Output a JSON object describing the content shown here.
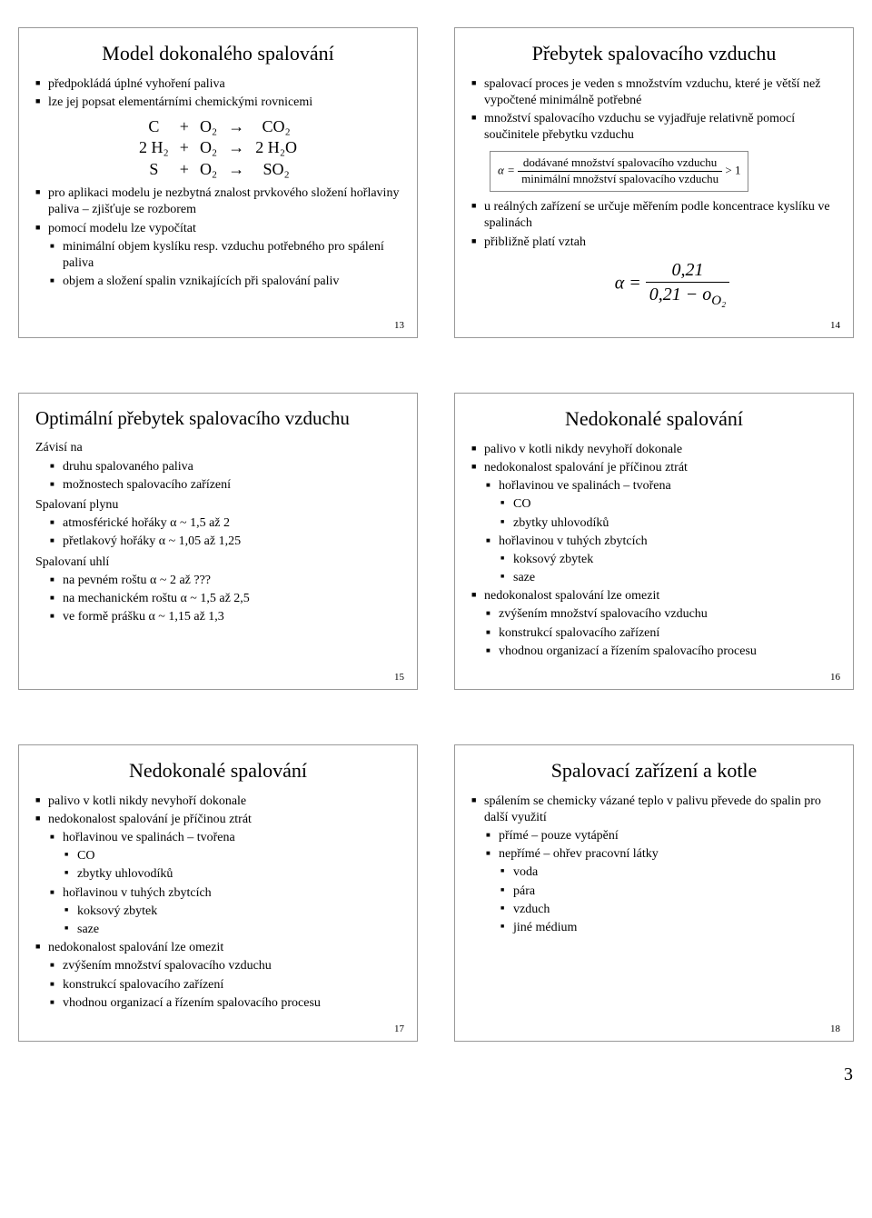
{
  "page_number": "3",
  "styling": {
    "background_color": "#ffffff",
    "text_color": "#000000",
    "border_color": "#999999",
    "font_family": "Times New Roman",
    "title_fontsize_pt": 22,
    "body_fontsize_pt": 14,
    "bullet_glyph": "■"
  },
  "slides": [
    {
      "num": "13",
      "title": "Model dokonalého spalování",
      "bullets": [
        {
          "lvl": 1,
          "t": "předpokládá úplné vyhoření paliva"
        },
        {
          "lvl": 1,
          "t": "lze jej popsat elementárními chemickými rovnicemi"
        }
      ],
      "equations": [
        [
          "C",
          "+",
          "O₂",
          "→",
          "CO₂"
        ],
        [
          "2 H₂",
          "+",
          "O₂",
          "→",
          "2 H₂O"
        ],
        [
          "S",
          "+",
          "O₂",
          "→",
          "SO₂"
        ]
      ],
      "bullets2": [
        {
          "lvl": 1,
          "t": "pro aplikaci modelu je nezbytná znalost prvkového složení hořlaviny paliva – zjišťuje se rozborem"
        },
        {
          "lvl": 1,
          "t": "pomocí modelu lze vypočítat"
        },
        {
          "lvl": 2,
          "t": "minimální objem kyslíku resp. vzduchu potřebného pro spálení paliva"
        },
        {
          "lvl": 2,
          "t": "objem a složení spalin vznikajících při spalování paliv"
        }
      ]
    },
    {
      "num": "14",
      "title": "Přebytek spalovacího vzduchu",
      "bullets": [
        {
          "lvl": 1,
          "t": "spalovací proces je veden s množstvím vzduchu, které je větší než vypočtené minimálně potřebné"
        },
        {
          "lvl": 1,
          "t": "množství spalovacího vzduchu se vyjadřuje relativně pomocí součinitele přebytku vzduchu"
        }
      ],
      "formula_box": {
        "lhs": "α =",
        "num": "dodávané množství spalovacího vzduchu",
        "den": "minimální množství spalovacího vzduchu",
        "cmp": "> 1"
      },
      "bullets2": [
        {
          "lvl": 1,
          "t": "u reálných zařízení se určuje měřením podle koncentrace kyslíku ve spalinách"
        },
        {
          "lvl": 1,
          "t": "přibližně platí vztah"
        }
      ],
      "alpha_formula": {
        "lhs": "α =",
        "num": "0,21",
        "den": "0,21 − o",
        "den_sub": "O₂"
      }
    },
    {
      "num": "15",
      "title": "Optimální přebytek spalovacího vzduchu",
      "groups": [
        {
          "label": "Závisí na",
          "items": [
            {
              "lvl": 2,
              "t": "druhu spalovaného paliva"
            },
            {
              "lvl": 2,
              "t": "možnostech spalovacího zařízení"
            }
          ]
        },
        {
          "label": "Spalovaní plynu",
          "items": [
            {
              "lvl": 2,
              "t": "atmosférické hořáky   α ~ 1,5 až 2"
            },
            {
              "lvl": 2,
              "t": "přetlakový hořáky   α ~ 1,05 až 1,25"
            }
          ]
        },
        {
          "label": "Spalovaní uhlí",
          "items": [
            {
              "lvl": 2,
              "t": "na pevném roštu   α ~ 2 až ???"
            },
            {
              "lvl": 2,
              "t": "na mechanickém roštu   α ~ 1,5 až 2,5"
            },
            {
              "lvl": 2,
              "t": "ve formě prášku   α ~ 1,15 až 1,3"
            }
          ]
        }
      ]
    },
    {
      "num": "16",
      "title": "Nedokonalé spalování",
      "bullets": [
        {
          "lvl": 1,
          "t": "palivo v kotli nikdy nevyhoří dokonale"
        },
        {
          "lvl": 1,
          "t": "nedokonalost spalování je příčinou ztrát"
        },
        {
          "lvl": 2,
          "t": "hořlavinou ve spalinách – tvořena"
        },
        {
          "lvl": 3,
          "t": "CO"
        },
        {
          "lvl": 3,
          "t": "zbytky uhlovodíků"
        },
        {
          "lvl": 2,
          "t": "hořlavinou v tuhých zbytcích"
        },
        {
          "lvl": 3,
          "t": "koksový zbytek"
        },
        {
          "lvl": 3,
          "t": "saze"
        },
        {
          "lvl": 1,
          "t": "nedokonalost spalování lze omezit"
        },
        {
          "lvl": 2,
          "t": "zvýšením množství spalovacího vzduchu"
        },
        {
          "lvl": 2,
          "t": "konstrukcí spalovacího zařízení"
        },
        {
          "lvl": 2,
          "t": "vhodnou organizací a řízením spalovacího procesu"
        }
      ]
    },
    {
      "num": "17",
      "title": "Nedokonalé spalování",
      "bullets": [
        {
          "lvl": 1,
          "t": "palivo v kotli nikdy nevyhoří dokonale"
        },
        {
          "lvl": 1,
          "t": "nedokonalost spalování je příčinou ztrát"
        },
        {
          "lvl": 2,
          "t": "hořlavinou ve spalinách – tvořena"
        },
        {
          "lvl": 3,
          "t": "CO"
        },
        {
          "lvl": 3,
          "t": "zbytky uhlovodíků"
        },
        {
          "lvl": 2,
          "t": "hořlavinou v tuhých zbytcích"
        },
        {
          "lvl": 3,
          "t": "koksový zbytek"
        },
        {
          "lvl": 3,
          "t": "saze"
        },
        {
          "lvl": 1,
          "t": "nedokonalost spalování lze omezit"
        },
        {
          "lvl": 2,
          "t": "zvýšením množství spalovacího vzduchu"
        },
        {
          "lvl": 2,
          "t": "konstrukcí spalovacího zařízení"
        },
        {
          "lvl": 2,
          "t": "vhodnou organizací a řízením spalovacího procesu"
        }
      ]
    },
    {
      "num": "18",
      "title": "Spalovací zařízení a kotle",
      "bullets": [
        {
          "lvl": 1,
          "t": "spálením se chemicky vázané teplo v palivu převede do spalin pro další využití"
        },
        {
          "lvl": 2,
          "t": "přímé – pouze vytápění"
        },
        {
          "lvl": 2,
          "t": "nepřímé – ohřev pracovní látky"
        },
        {
          "lvl": 3,
          "t": "voda"
        },
        {
          "lvl": 3,
          "t": "pára"
        },
        {
          "lvl": 3,
          "t": "vzduch"
        },
        {
          "lvl": 3,
          "t": "jiné médium"
        }
      ]
    }
  ]
}
